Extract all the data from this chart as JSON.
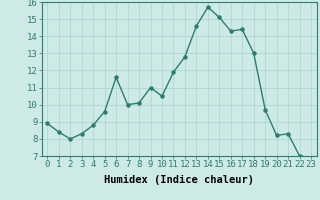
{
  "x": [
    0,
    1,
    2,
    3,
    4,
    5,
    6,
    7,
    8,
    9,
    10,
    11,
    12,
    13,
    14,
    15,
    16,
    17,
    18,
    19,
    20,
    21,
    22,
    23
  ],
  "y": [
    8.9,
    8.4,
    8.0,
    8.3,
    8.8,
    9.6,
    11.6,
    10.0,
    10.1,
    11.0,
    10.5,
    11.9,
    12.8,
    14.6,
    15.7,
    15.1,
    14.3,
    14.4,
    13.0,
    9.7,
    8.2,
    8.3,
    7.0,
    6.9
  ],
  "line_color": "#2d7d6e",
  "marker": "o",
  "marker_size": 2.2,
  "linewidth": 1.0,
  "bg_color": "#ceeae7",
  "grid_color": "#aad4cf",
  "xlabel": "Humidex (Indice chaleur)",
  "xlim": [
    -0.5,
    23.5
  ],
  "ylim": [
    7,
    16
  ],
  "xticks": [
    0,
    1,
    2,
    3,
    4,
    5,
    6,
    7,
    8,
    9,
    10,
    11,
    12,
    13,
    14,
    15,
    16,
    17,
    18,
    19,
    20,
    21,
    22,
    23
  ],
  "yticks": [
    7,
    8,
    9,
    10,
    11,
    12,
    13,
    14,
    15,
    16
  ],
  "xlabel_fontsize": 7.5,
  "tick_fontsize": 6.5
}
